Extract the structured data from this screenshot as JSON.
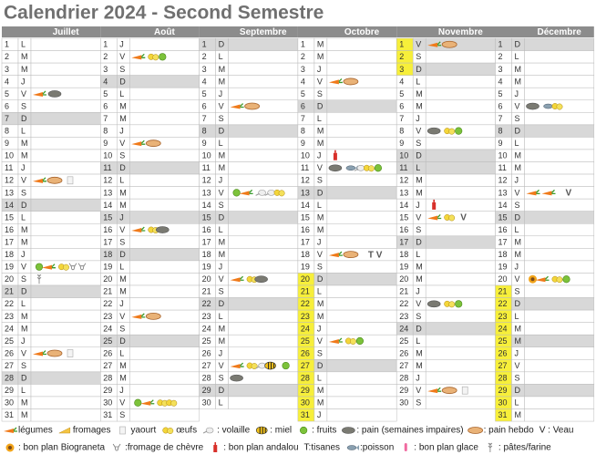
{
  "title": "Calendrier 2024 - Second Semestre",
  "months": [
    {
      "name": "Juillet",
      "days": [
        1,
        2,
        3,
        4,
        5,
        6,
        7,
        8,
        9,
        10,
        11,
        12,
        13,
        14,
        15,
        16,
        17,
        18,
        19,
        20,
        21,
        22,
        23,
        24,
        25,
        26,
        27,
        28,
        29,
        30,
        31
      ],
      "weekdays": [
        "L",
        "M",
        "M",
        "J",
        "V",
        "S",
        "D",
        "L",
        "M",
        "M",
        "J",
        "V",
        "S",
        "D",
        "L",
        "M",
        "M",
        "J",
        "V",
        "S",
        "D",
        "L",
        "M",
        "M",
        "J",
        "V",
        "S",
        "D",
        "L",
        "M",
        "M"
      ],
      "notes": []
    },
    {
      "name": "Août",
      "days": [
        1,
        2,
        3,
        4,
        5,
        6,
        7,
        8,
        9,
        10,
        11,
        12,
        13,
        14,
        15,
        16,
        17,
        18,
        19,
        20,
        21,
        22,
        23,
        24,
        25,
        26,
        27,
        28,
        29,
        30,
        31
      ],
      "weekdays": [
        "J",
        "V",
        "S",
        "D",
        "L",
        "M",
        "M",
        "J",
        "V",
        "S",
        "D",
        "L",
        "M",
        "M",
        "J",
        "V",
        "S",
        "D",
        "L",
        "M",
        "M",
        "J",
        "V",
        "S",
        "D",
        "L",
        "M",
        "M",
        "J",
        "V",
        "S"
      ],
      "notes": []
    },
    {
      "name": "Septembre",
      "days": [
        1,
        2,
        3,
        4,
        5,
        6,
        7,
        8,
        9,
        10,
        11,
        12,
        13,
        14,
        15,
        16,
        17,
        18,
        19,
        20,
        21,
        22,
        23,
        24,
        25,
        26,
        27,
        28,
        29,
        30
      ],
      "weekdays": [
        "D",
        "L",
        "M",
        "M",
        "J",
        "V",
        "S",
        "D",
        "L",
        "M",
        "M",
        "J",
        "V",
        "S",
        "D",
        "L",
        "M",
        "M",
        "J",
        "V",
        "S",
        "D",
        "L",
        "M",
        "M",
        "J",
        "V",
        "S",
        "D",
        "L"
      ],
      "notes": []
    },
    {
      "name": "Octobre",
      "days": [
        1,
        2,
        3,
        4,
        5,
        6,
        7,
        8,
        9,
        10,
        11,
        12,
        13,
        14,
        15,
        16,
        17,
        18,
        19,
        20,
        21,
        22,
        23,
        24,
        25,
        26,
        27,
        28,
        29,
        30,
        31
      ],
      "weekdays": [
        "M",
        "M",
        "J",
        "V",
        "S",
        "D",
        "L",
        "M",
        "M",
        "J",
        "V",
        "S",
        "D",
        "L",
        "M",
        "M",
        "J",
        "V",
        "S",
        "D",
        "L",
        "M",
        "M",
        "J",
        "V",
        "S",
        "D",
        "L",
        "M",
        "M",
        "J"
      ],
      "notes": [
        {
          "day": 18,
          "text": "T V"
        }
      ]
    },
    {
      "name": "Novembre",
      "days": [
        1,
        2,
        3,
        4,
        5,
        6,
        7,
        8,
        9,
        10,
        11,
        12,
        13,
        14,
        15,
        16,
        17,
        18,
        19,
        20,
        21,
        22,
        23,
        24,
        25,
        26,
        27,
        28,
        29,
        30
      ],
      "weekdays": [
        "V",
        "S",
        "D",
        "L",
        "M",
        "M",
        "J",
        "V",
        "S",
        "D",
        "L",
        "M",
        "M",
        "J",
        "V",
        "S",
        "D",
        "L",
        "M",
        "M",
        "J",
        "V",
        "S",
        "D",
        "L",
        "M",
        "M",
        "J",
        "V",
        "S"
      ],
      "notes": [
        {
          "day": 15,
          "text": "V"
        }
      ]
    },
    {
      "name": "Décembre",
      "days": [
        1,
        2,
        3,
        4,
        5,
        6,
        7,
        8,
        9,
        10,
        11,
        12,
        13,
        14,
        15,
        16,
        17,
        18,
        19,
        20,
        21,
        22,
        23,
        24,
        25,
        26,
        27,
        28,
        29,
        30,
        31
      ],
      "weekdays": [
        "D",
        "L",
        "M",
        "M",
        "J",
        "V",
        "S",
        "D",
        "L",
        "M",
        "M",
        "J",
        "V",
        "S",
        "D",
        "L",
        "M",
        "M",
        "J",
        "V",
        "S",
        "D",
        "L",
        "M",
        "M",
        "J",
        "V",
        "S",
        "D",
        "L",
        "M"
      ],
      "notes": [
        {
          "day": 13,
          "text": "V"
        }
      ]
    }
  ],
  "legend": {
    "row1": [
      "légumes",
      "fromages",
      "yaourt",
      "œufs",
      ": volaille",
      ": miel",
      ": fruits",
      ": pain (semaines impaires)",
      ": pain hebdo",
      "V : Veau"
    ],
    "row2": [
      ": bon plan Biograneta",
      ":fromage de chèvre",
      ": bon plan andalou",
      "T:tisanes",
      ":poisson",
      ": bon plan glace",
      ": pâtes/farine"
    ]
  }
}
